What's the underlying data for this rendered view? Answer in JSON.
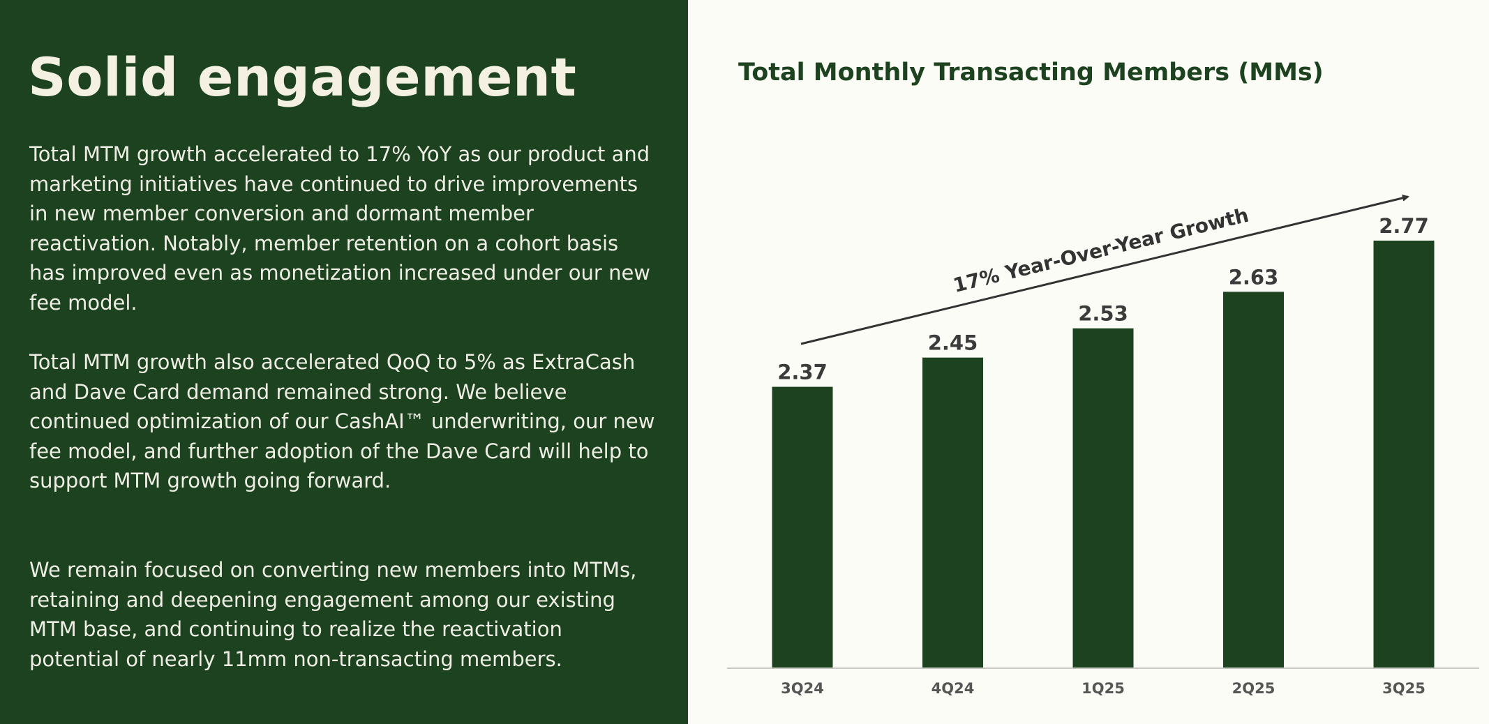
{
  "left": {
    "headline": "Solid engagement",
    "paragraphs": [
      "Total MTM growth accelerated to 17% YoY as our product and marketing initiatives have continued to drive improvements in new member conversion and dormant member reactivation. Notably, member retention on a cohort basis has improved even as monetization increased under our new fee model.",
      "Total MTM growth also accelerated QoQ to 5% as ExtraCash and Dave Card demand remained strong. We believe continued optimization of our CashAI™ underwriting, our new fee model, and further adoption of the Dave Card will help to support MTM growth going forward.",
      "We remain focused on converting new members into MTMs, retaining and deepening engagement among our existing MTM base, and continuing to realize the reactivation potential of nearly 11mm non-transacting members."
    ]
  },
  "colors": {
    "brand_green": "#1c421f",
    "background": "#fcfcf6",
    "label_gray": "#3b3b3b"
  },
  "chart_data": {
    "type": "bar",
    "title": "Total Monthly Transacting Members (MMs)",
    "categories": [
      "3Q24",
      "4Q24",
      "1Q25",
      "2Q25",
      "3Q25"
    ],
    "values": [
      2.37,
      2.45,
      2.53,
      2.63,
      2.77
    ],
    "data_labels": [
      "2.37",
      "2.45",
      "2.53",
      "2.63",
      "2.77"
    ],
    "annotation": "17% Year-Over-Year Growth",
    "ylim": [
      1.6,
      2.77
    ],
    "grid": false,
    "legend": "none"
  }
}
